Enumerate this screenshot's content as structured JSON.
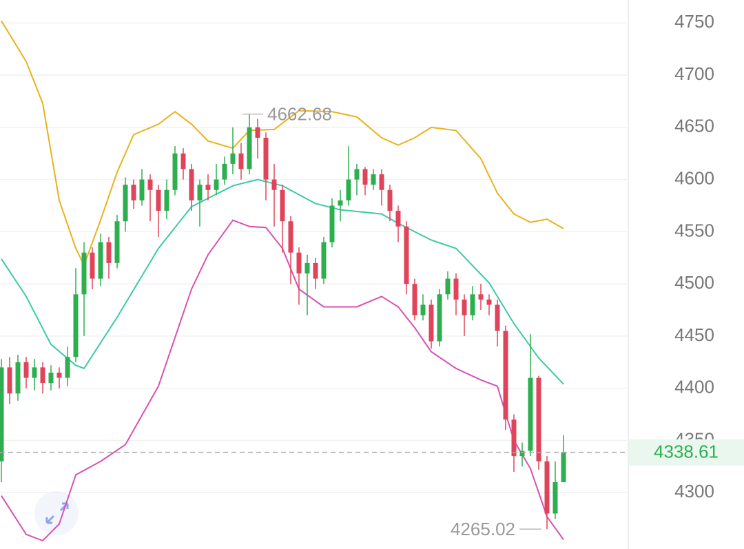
{
  "chart_data": {
    "type": "candlestick",
    "ylim": [
      4246,
      4772
    ],
    "yticks": [
      4300,
      4350,
      4400,
      4450,
      4500,
      4550,
      4600,
      4650,
      4700,
      4750
    ],
    "grid": true,
    "up_color": "#2eaf4f",
    "down_color": "#e0445a",
    "open": [
      4330,
      4420,
      4395,
      4425,
      4410,
      4420,
      4405,
      4415,
      4410,
      4430,
      4490,
      4530,
      4505,
      4540,
      4520,
      4560,
      4595,
      4580,
      4600,
      4590,
      4570,
      4590,
      4625,
      4610,
      4580,
      4595,
      4590,
      4600,
      4615,
      4625,
      4610,
      4650,
      4640,
      4600,
      4590,
      4560,
      4530,
      4510,
      4520,
      4505,
      4540,
      4575,
      4580,
      4600,
      4610,
      4595,
      4605,
      4590,
      4570,
      4555,
      4500,
      4470,
      4480,
      4445,
      4490,
      4505,
      4485,
      4470,
      4490,
      4485,
      4480,
      4455,
      4370,
      4335,
      4340,
      4410,
      4330,
      4280,
      4310
    ],
    "high": [
      4428,
      4430,
      4432,
      4430,
      4428,
      4425,
      4422,
      4420,
      4440,
      4515,
      4540,
      4535,
      4548,
      4545,
      4566,
      4602,
      4600,
      4610,
      4605,
      4595,
      4600,
      4632,
      4630,
      4615,
      4600,
      4605,
      4615,
      4622,
      4650,
      4635,
      4662.68,
      4658,
      4645,
      4615,
      4595,
      4565,
      4535,
      4528,
      4525,
      4545,
      4582,
      4590,
      4632,
      4615,
      4612,
      4610,
      4610,
      4595,
      4575,
      4560,
      4505,
      4490,
      4485,
      4495,
      4512,
      4510,
      4490,
      4498,
      4500,
      4490,
      4485,
      4460,
      4375,
      4348,
      4452,
      4412,
      4335,
      4330,
      4355
    ],
    "low": [
      4310,
      4385,
      4388,
      4400,
      4398,
      4395,
      4398,
      4400,
      4402,
      4425,
      4450,
      4495,
      4498,
      4505,
      4515,
      4550,
      4572,
      4575,
      4560,
      4545,
      4562,
      4585,
      4600,
      4570,
      4555,
      4580,
      4585,
      4595,
      4605,
      4600,
      4605,
      4620,
      4580,
      4555,
      4530,
      4500,
      4480,
      4470,
      4495,
      4500,
      4535,
      4560,
      4575,
      4585,
      4585,
      4590,
      4575,
      4560,
      4540,
      4490,
      4465,
      4465,
      4438,
      4440,
      4485,
      4470,
      4450,
      4465,
      4475,
      4470,
      4440,
      4360,
      4320,
      4325,
      4335,
      4322,
      4265.02,
      4275,
      4315
    ],
    "close": [
      4420,
      4395,
      4425,
      4410,
      4420,
      4405,
      4415,
      4410,
      4430,
      4490,
      4530,
      4505,
      4540,
      4520,
      4560,
      4595,
      4580,
      4600,
      4590,
      4570,
      4590,
      4625,
      4610,
      4580,
      4595,
      4590,
      4600,
      4615,
      4625,
      4610,
      4650,
      4640,
      4600,
      4590,
      4560,
      4530,
      4510,
      4520,
      4505,
      4540,
      4575,
      4580,
      4600,
      4610,
      4595,
      4605,
      4590,
      4570,
      4555,
      4500,
      4470,
      4480,
      4445,
      4490,
      4505,
      4485,
      4470,
      4490,
      4485,
      4480,
      4455,
      4370,
      4335,
      4340,
      4410,
      4330,
      4280,
      4310,
      4338.61
    ],
    "bands": [
      {
        "color": "#e8b21a",
        "x": [
          0,
          3,
          5,
          7,
          9,
          10,
          12,
          14,
          16,
          19,
          21,
          23,
          25,
          28,
          30,
          33,
          36,
          40,
          43,
          46,
          48,
          50,
          52,
          55,
          58,
          60,
          62,
          64,
          66,
          68
        ],
        "values": [
          4752,
          4713,
          4673,
          4580,
          4534,
          4518,
          4561,
          4607,
          4643,
          4653,
          4665,
          4653,
          4637,
          4630,
          4647,
          4648,
          4666,
          4665,
          4660,
          4640,
          4633,
          4640,
          4650,
          4647,
          4620,
          4587,
          4567,
          4559,
          4562,
          4553
        ]
      },
      {
        "color": "#3cc9a6",
        "x": [
          0,
          3,
          6,
          9,
          10,
          14,
          19,
          23,
          28,
          31,
          34,
          38,
          41,
          46,
          48,
          52,
          55,
          59,
          62,
          65,
          68
        ],
        "values": [
          4524,
          4488,
          4442,
          4422,
          4419,
          4468,
          4534,
          4574,
          4594,
          4600,
          4594,
          4577,
          4571,
          4567,
          4558,
          4542,
          4534,
          4501,
          4462,
          4429,
          4404
        ]
      },
      {
        "color": "#d94fb4",
        "x": [
          0,
          3,
          5,
          7,
          9,
          12,
          15,
          19,
          23,
          25,
          28,
          30,
          32,
          34,
          36,
          39,
          43,
          46,
          48,
          50,
          52,
          55,
          58,
          60,
          62,
          64,
          66,
          68
        ],
        "values": [
          4297,
          4260,
          4254,
          4270,
          4317,
          4330,
          4346,
          4402,
          4495,
          4528,
          4561,
          4555,
          4554,
          4534,
          4495,
          4478,
          4478,
          4488,
          4478,
          4458,
          4435,
          4419,
          4408,
          4402,
          4350,
          4323,
          4277,
          4255
        ]
      }
    ],
    "high_label": 4662.68,
    "low_label": 4265.02,
    "last_price": 4338.61
  }
}
